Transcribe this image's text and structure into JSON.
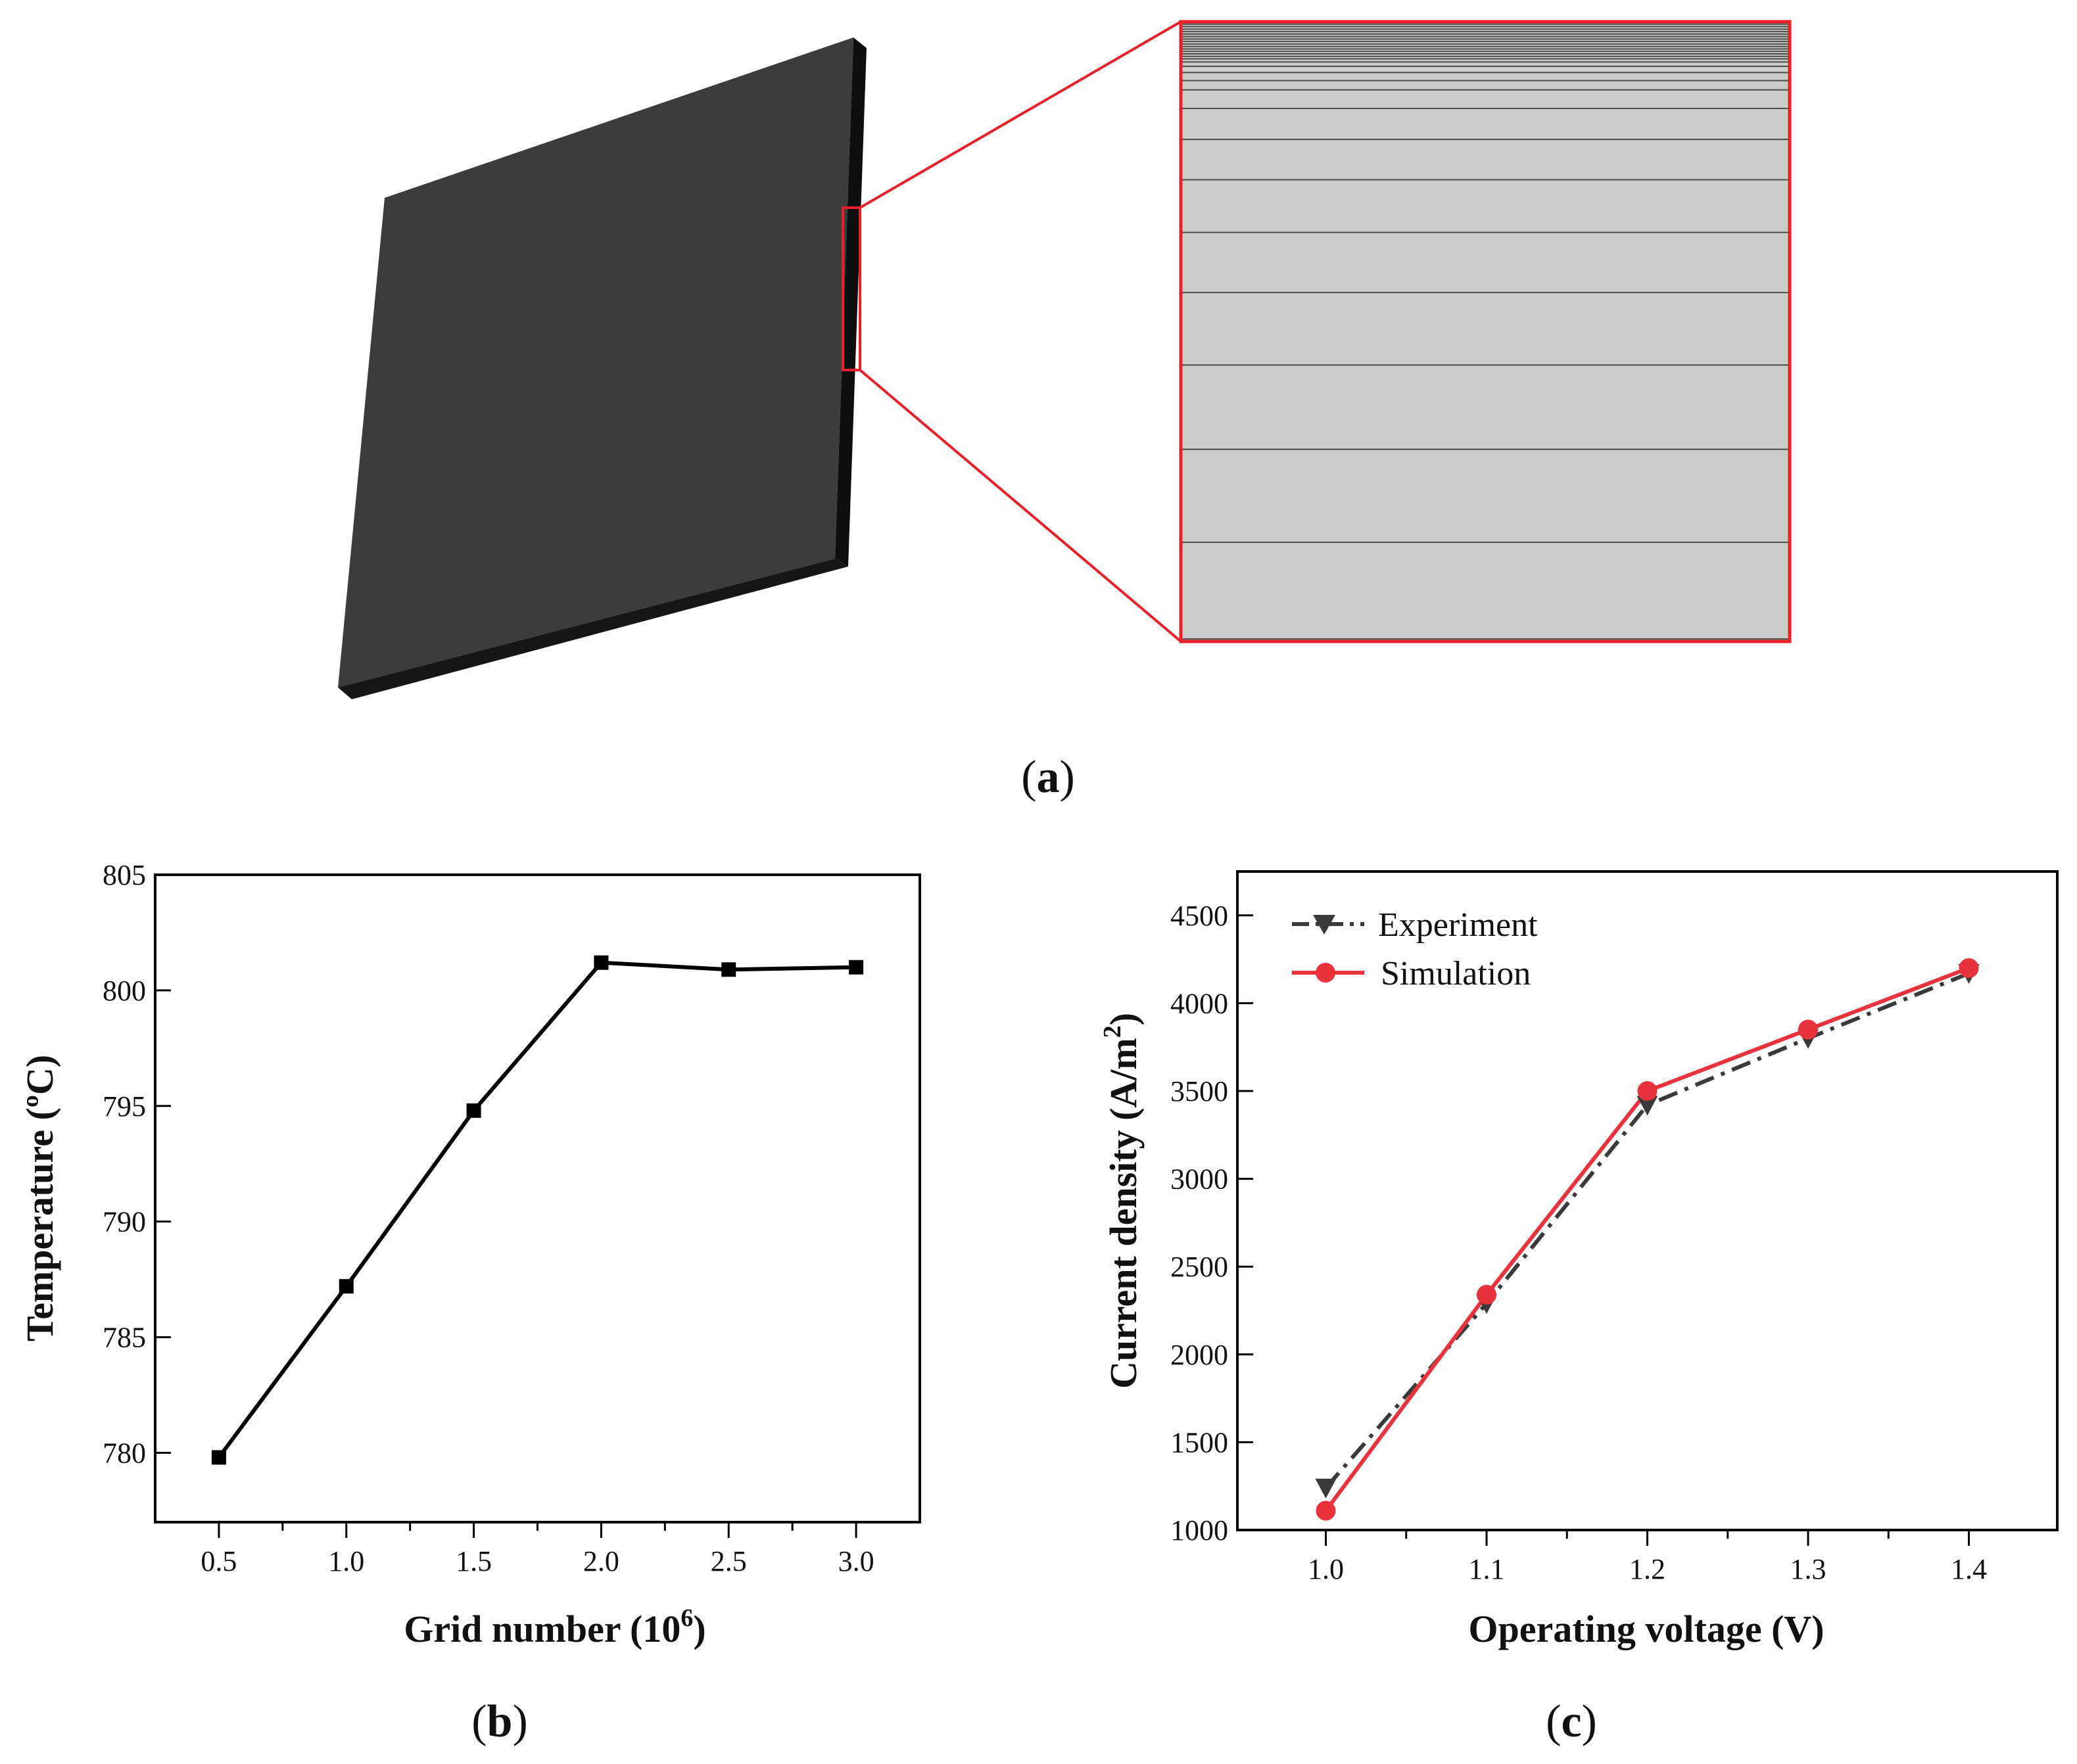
{
  "captions": {
    "a": {
      "open": "(",
      "letter": "a",
      "close": ")"
    },
    "b": {
      "open": "(",
      "letter": "b",
      "close": ")"
    },
    "c": {
      "open": "(",
      "letter": "c",
      "close": ")"
    }
  },
  "panel_a": {
    "description_colors": {
      "plate_top": "#3b3b3b",
      "plate_edge": "#111111",
      "zoom_frame": "#e8202a",
      "mesh_fill": "#cccccc",
      "mesh_line": "#4a4a4a"
    },
    "mesh_layer_fractions": [
      0.0,
      0.004,
      0.008,
      0.012,
      0.016,
      0.02,
      0.024,
      0.028,
      0.032,
      0.036,
      0.04,
      0.044,
      0.048,
      0.052,
      0.056,
      0.06,
      0.065,
      0.072,
      0.082,
      0.095,
      0.11,
      0.14,
      0.19,
      0.255,
      0.34,
      0.437,
      0.554,
      0.69,
      0.84,
      0.996
    ]
  },
  "chart_data": [
    {
      "type": "line",
      "panel": "b",
      "x": [
        0.5,
        1.0,
        1.5,
        2.0,
        2.5,
        3.0
      ],
      "series": [
        {
          "values": [
            779.8,
            787.2,
            794.8,
            801.2,
            800.9,
            801.0
          ],
          "color": "#000000",
          "marker": "square",
          "line": "solid"
        }
      ],
      "xlabel": {
        "text": "Grid number (10",
        "sup": "6",
        "tail": ")"
      },
      "ylabel": "Temperature (ºC)",
      "xlim": [
        0.25,
        3.25
      ],
      "ylim": [
        777,
        805
      ],
      "xticks": [
        "0.5",
        "1.0",
        "1.5",
        "2.0",
        "2.5",
        "3.0"
      ],
      "yticks": [
        "780",
        "785",
        "790",
        "795",
        "800",
        "805"
      ],
      "grid": false,
      "legend": "none"
    },
    {
      "type": "line",
      "panel": "c",
      "x": [
        1.0,
        1.1,
        1.2,
        1.3,
        1.4
      ],
      "series": [
        {
          "name": "Experiment",
          "values": [
            1240,
            2290,
            3420,
            3800,
            4170
          ],
          "color": "#3a3a3a",
          "marker": "triangle-down",
          "line": "dashdot"
        },
        {
          "name": "Simulation",
          "values": [
            1110,
            2340,
            3500,
            3850,
            4200
          ],
          "color": "#e8323c",
          "marker": "circle",
          "line": "solid"
        }
      ],
      "xlabel": "Operating voltage (V)",
      "ylabel": {
        "text": "Current density (A/m",
        "sup": "2",
        "tail": ")"
      },
      "xlim": [
        0.945,
        1.455
      ],
      "ylim": [
        1000,
        4750
      ],
      "xticks": [
        "1.0",
        "1.1",
        "1.2",
        "1.3",
        "1.4"
      ],
      "yticks": [
        "1000",
        "1500",
        "2000",
        "2500",
        "3000",
        "3500",
        "4000",
        "4500"
      ],
      "grid": false,
      "legend": "top-left"
    }
  ]
}
